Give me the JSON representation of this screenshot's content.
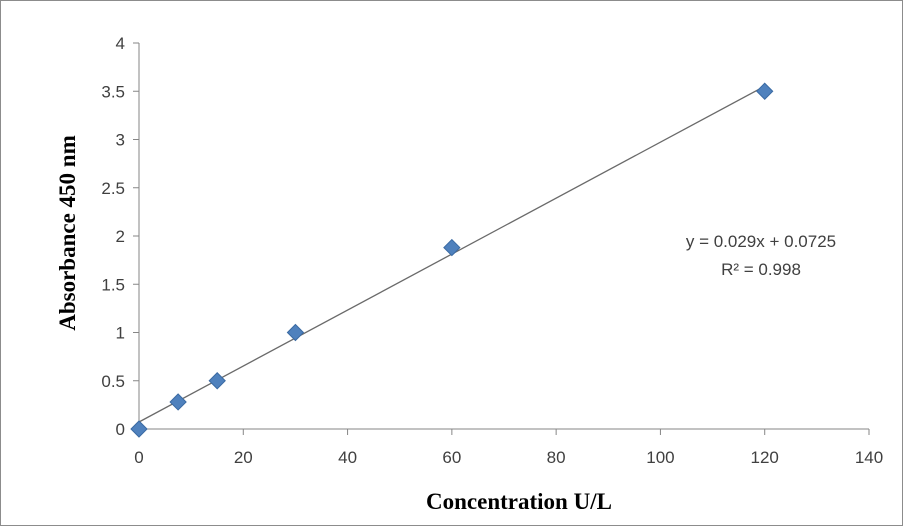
{
  "chart_data": {
    "type": "scatter",
    "title": "",
    "xlabel": "Concentration U/L",
    "ylabel": "Absorbance  450 nm",
    "xlim": [
      0,
      140
    ],
    "ylim": [
      0,
      4
    ],
    "xticks": [
      "0",
      "20",
      "40",
      "60",
      "80",
      "100",
      "120",
      "140"
    ],
    "yticks": [
      "0",
      "0.5",
      "1",
      "1.5",
      "2",
      "2.5",
      "3",
      "3.5",
      "4"
    ],
    "grid": false,
    "legend": "none",
    "series": [
      {
        "marker": "diamond",
        "color": "#4f81bd",
        "x": [
          0,
          7.5,
          15,
          30,
          60,
          120
        ],
        "y": [
          0,
          0.28,
          0.5,
          1.0,
          1.88,
          3.5
        ]
      }
    ],
    "trendline": {
      "type": "linear",
      "slope": 0.029,
      "intercept": 0.0725,
      "x_range": [
        0,
        120
      ],
      "color": "#6a6a6a"
    },
    "annotations": [
      "y = 0.029x + 0.0725",
      "R² = 0.998"
    ]
  }
}
